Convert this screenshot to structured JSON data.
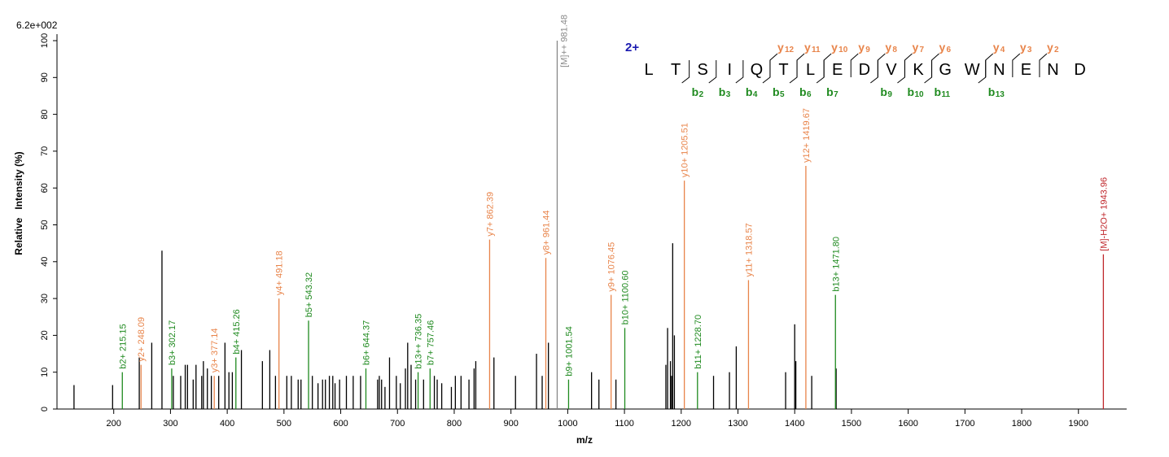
{
  "chart_data": {
    "type": "spectrum",
    "scale_label": "6.2e+002",
    "ylabel": "Relative   Intensity (%)",
    "xlabel": "m/z",
    "xlim": [
      100,
      1985
    ],
    "ylim": [
      0,
      100
    ],
    "xticks": [
      200,
      300,
      400,
      500,
      600,
      700,
      800,
      900,
      1000,
      1100,
      1200,
      1300,
      1400,
      1500,
      1600,
      1700,
      1800,
      1900
    ],
    "yticks": [
      0,
      10,
      20,
      30,
      40,
      50,
      60,
      70,
      80,
      90,
      100
    ],
    "series": [
      {
        "color": "#000000",
        "x": [
          130,
          198,
          245,
          267,
          285,
          305,
          318,
          326,
          330,
          340,
          345,
          355,
          358,
          365,
          372,
          385,
          396,
          403,
          409,
          425,
          462,
          475,
          485,
          505,
          513,
          525,
          530,
          550,
          560,
          568,
          573,
          580,
          586,
          590,
          598,
          610,
          622,
          635,
          665,
          668,
          672,
          678,
          686,
          698,
          705,
          714,
          718,
          724,
          732,
          746,
          765,
          770,
          778,
          795,
          802,
          812,
          826,
          835,
          838,
          870,
          908,
          945,
          955,
          966,
          1042,
          1055,
          1085,
          1173,
          1176,
          1181,
          1183,
          1185,
          1188,
          1257,
          1285,
          1297,
          1384,
          1400,
          1402,
          1430,
          1473
        ],
        "values": [
          6.5,
          6.5,
          14,
          18,
          43,
          9,
          9,
          12,
          12,
          8,
          12,
          9,
          13,
          11,
          9,
          9,
          18,
          10,
          10,
          16,
          13,
          16,
          9,
          9,
          9,
          8,
          8,
          9,
          7,
          8,
          8,
          9,
          9,
          7,
          8,
          9,
          9,
          9,
          8,
          9,
          8,
          6,
          14,
          9,
          7,
          11,
          18,
          12,
          8,
          8,
          9,
          8,
          7,
          6,
          9,
          9,
          8,
          11,
          13,
          14,
          9,
          15,
          9,
          18,
          10,
          8,
          8,
          12,
          22,
          13,
          9,
          45,
          20,
          9,
          10,
          17,
          10,
          23,
          13,
          9,
          11
        ]
      }
    ],
    "annotated": [
      {
        "x": 215.15,
        "value": 10,
        "label": "b2+ 215.15",
        "color": "#1f8a1f"
      },
      {
        "x": 248.09,
        "value": 12,
        "label": "y2+ 248.09",
        "color": "#e8844a"
      },
      {
        "x": 302.17,
        "value": 11,
        "label": "b3+ 302.17",
        "color": "#1f8a1f"
      },
      {
        "x": 377.14,
        "value": 9,
        "label": "y3+ 377.14",
        "color": "#e8844a"
      },
      {
        "x": 415.26,
        "value": 14,
        "label": "b4+ 415.26",
        "color": "#1f8a1f"
      },
      {
        "x": 491.18,
        "value": 30,
        "label": "y4+ 491.18",
        "color": "#e8844a"
      },
      {
        "x": 543.32,
        "value": 24,
        "label": "b5+ 543.32",
        "color": "#1f8a1f"
      },
      {
        "x": 644.37,
        "value": 11,
        "label": "b6+ 644.37",
        "color": "#1f8a1f"
      },
      {
        "x": 736.35,
        "value": 10,
        "label": "b13++ 736.35",
        "color": "#1f8a1f"
      },
      {
        "x": 757.46,
        "value": 11,
        "label": "b7+ 757.46",
        "color": "#1f8a1f"
      },
      {
        "x": 862.39,
        "value": 46,
        "label": "y7+ 862.39",
        "color": "#e8844a"
      },
      {
        "x": 961.44,
        "value": 41,
        "label": "y8+ 961.44",
        "color": "#e8844a"
      },
      {
        "x": 981.48,
        "value": 100,
        "label": "[M]++ 981.48",
        "color": "#888888"
      },
      {
        "x": 1001.54,
        "value": 8,
        "label": "b9+ 1001.54",
        "color": "#1f8a1f"
      },
      {
        "x": 1076.45,
        "value": 31,
        "label": "y9+ 1076.45",
        "color": "#e8844a"
      },
      {
        "x": 1100.6,
        "value": 22,
        "label": "b10+ 1100.60",
        "color": "#1f8a1f"
      },
      {
        "x": 1205.51,
        "value": 62,
        "label": "y10+ 1205.51",
        "color": "#e8844a"
      },
      {
        "x": 1228.7,
        "value": 10,
        "label": "b11+ 1228.70",
        "color": "#1f8a1f"
      },
      {
        "x": 1318.57,
        "value": 35,
        "label": "y11+ 1318.57",
        "color": "#e8844a"
      },
      {
        "x": 1419.67,
        "value": 66,
        "label": "y12+ 1419.67",
        "color": "#e8844a"
      },
      {
        "x": 1471.8,
        "value": 31,
        "label": "b13+ 1471.80",
        "color": "#1f8a1f"
      },
      {
        "x": 1943.96,
        "value": 42,
        "label": "[M]-H2O+ 1943.96",
        "color": "#c0282d"
      }
    ],
    "sequence": {
      "charge": "2+",
      "residues": [
        "L",
        "T",
        "S",
        "I",
        "Q",
        "T",
        "L",
        "E",
        "D",
        "V",
        "K",
        "G",
        "W",
        "N",
        "E",
        "N",
        "D"
      ],
      "y_ions": [
        {
          "ion": "y",
          "n": 12
        },
        {
          "ion": "y",
          "n": 11
        },
        {
          "ion": "y",
          "n": 10
        },
        {
          "ion": "y",
          "n": 9
        },
        {
          "ion": "y",
          "n": 8
        },
        {
          "ion": "y",
          "n": 7
        },
        {
          "ion": "y",
          "n": 6
        },
        {
          "ion": "y",
          "n": 4
        },
        {
          "ion": "y",
          "n": 3
        },
        {
          "ion": "y",
          "n": 2
        }
      ],
      "b_ions": [
        {
          "ion": "b",
          "n": 2
        },
        {
          "ion": "b",
          "n": 3
        },
        {
          "ion": "b",
          "n": 4
        },
        {
          "ion": "b",
          "n": 5
        },
        {
          "ion": "b",
          "n": 6
        },
        {
          "ion": "b",
          "n": 7
        },
        {
          "ion": "b",
          "n": 9
        },
        {
          "ion": "b",
          "n": 10
        },
        {
          "ion": "b",
          "n": 11
        },
        {
          "ion": "b",
          "n": 13
        }
      ]
    }
  }
}
